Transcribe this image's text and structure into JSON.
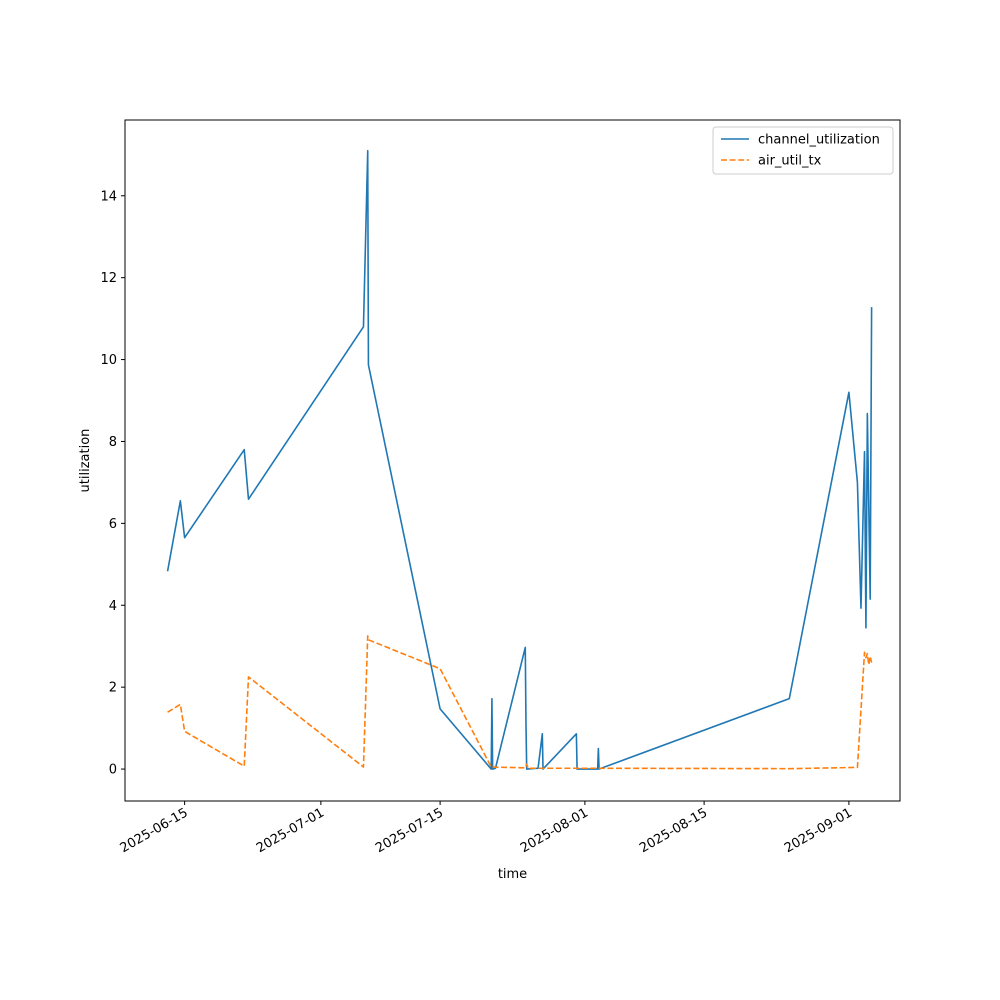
{
  "chart_data": {
    "type": "line",
    "xlabel": "time",
    "ylabel": "utilization",
    "x_axis_type": "date",
    "xlim": [
      "2025-06-08",
      "2025-09-07"
    ],
    "ylim": [
      -0.78,
      15.85
    ],
    "x_ticks": [
      "2025-06-15",
      "2025-07-01",
      "2025-07-15",
      "2025-08-01",
      "2025-08-15",
      "2025-09-01"
    ],
    "y_ticks": [
      0,
      2,
      4,
      6,
      8,
      10,
      12,
      14
    ],
    "grid": false,
    "legend_position": "top-right",
    "series": [
      {
        "name": "channel_utilization",
        "color": "#1f77b4",
        "linestyle": "solid",
        "points": [
          [
            "2025-06-13",
            4.83
          ],
          [
            "2025-06-14 12:00",
            6.55
          ],
          [
            "2025-06-15",
            5.65
          ],
          [
            "2025-06-22",
            7.8
          ],
          [
            "2025-06-22 12:00",
            6.59
          ],
          [
            "2025-07-06",
            10.8
          ],
          [
            "2025-07-06 12:00",
            15.1
          ],
          [
            "2025-07-06 14:00",
            9.87
          ],
          [
            "2025-07-15",
            1.47
          ],
          [
            "2025-07-21",
            0.0
          ],
          [
            "2025-07-21 02:00",
            1.72
          ],
          [
            "2025-07-21 04:00",
            0.0
          ],
          [
            "2025-07-21 12:00",
            0.02
          ],
          [
            "2025-07-25",
            2.97
          ],
          [
            "2025-07-25 02:00",
            1.1
          ],
          [
            "2025-07-25 04:00",
            0.0
          ],
          [
            "2025-07-26 12:00",
            0.02
          ],
          [
            "2025-07-27",
            0.86
          ],
          [
            "2025-07-27 02:00",
            0.0
          ],
          [
            "2025-07-31",
            0.86
          ],
          [
            "2025-07-31 02:00",
            0.0
          ],
          [
            "2025-08-02 12:00",
            0.0
          ],
          [
            "2025-08-02 14:00",
            0.5
          ],
          [
            "2025-08-02 16:00",
            0.0
          ],
          [
            "2025-08-25",
            1.72
          ],
          [
            "2025-09-01",
            9.2
          ],
          [
            "2025-09-02",
            7.0
          ],
          [
            "2025-09-02 10:00",
            3.93
          ],
          [
            "2025-09-02 20:00",
            7.75
          ],
          [
            "2025-09-03",
            3.45
          ],
          [
            "2025-09-03 04:00",
            8.68
          ],
          [
            "2025-09-03 12:00",
            4.15
          ],
          [
            "2025-09-03 16:00",
            11.28
          ]
        ]
      },
      {
        "name": "air_util_tx",
        "color": "#ff7f0e",
        "linestyle": "dashed",
        "points": [
          [
            "2025-06-13",
            1.39
          ],
          [
            "2025-06-14 12:00",
            1.58
          ],
          [
            "2025-06-15",
            0.92
          ],
          [
            "2025-06-22",
            0.07
          ],
          [
            "2025-06-22 12:00",
            2.25
          ],
          [
            "2025-07-06",
            0.05
          ],
          [
            "2025-07-06 12:00",
            3.25
          ],
          [
            "2025-07-06 16:00",
            3.15
          ],
          [
            "2025-07-15",
            2.45
          ],
          [
            "2025-07-21",
            0.05
          ],
          [
            "2025-07-25",
            0.03
          ],
          [
            "2025-07-25 04:00",
            0.12
          ],
          [
            "2025-07-25 08:00",
            0.02
          ],
          [
            "2025-08-02",
            0.02
          ],
          [
            "2025-08-25",
            0.01
          ],
          [
            "2025-09-02",
            0.04
          ],
          [
            "2025-09-02 20:00",
            2.85
          ],
          [
            "2025-09-03",
            2.72
          ],
          [
            "2025-09-03 04:00",
            2.82
          ],
          [
            "2025-09-03 08:00",
            2.55
          ],
          [
            "2025-09-03 12:00",
            2.75
          ],
          [
            "2025-09-03 16:00",
            2.6
          ]
        ]
      }
    ]
  }
}
